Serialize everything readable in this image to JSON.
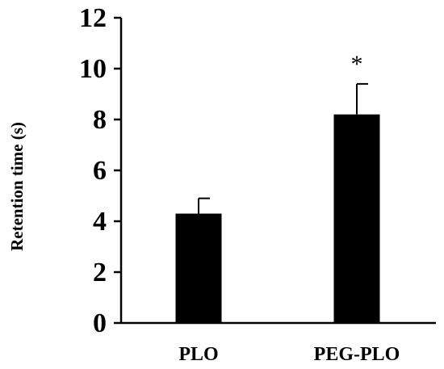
{
  "chart_data": {
    "type": "bar",
    "categories": [
      "PLO",
      "PEG-PLO"
    ],
    "values": [
      4.3,
      8.2
    ],
    "errors": [
      0.6,
      1.2
    ],
    "annotations": [
      "",
      "*"
    ],
    "ylabel": "Retention time (s)",
    "xlabel": "",
    "ylim": [
      0,
      12
    ],
    "yticks": [
      0,
      2,
      4,
      6,
      8,
      10,
      12
    ],
    "grid": false,
    "bar_color": "#000000"
  }
}
